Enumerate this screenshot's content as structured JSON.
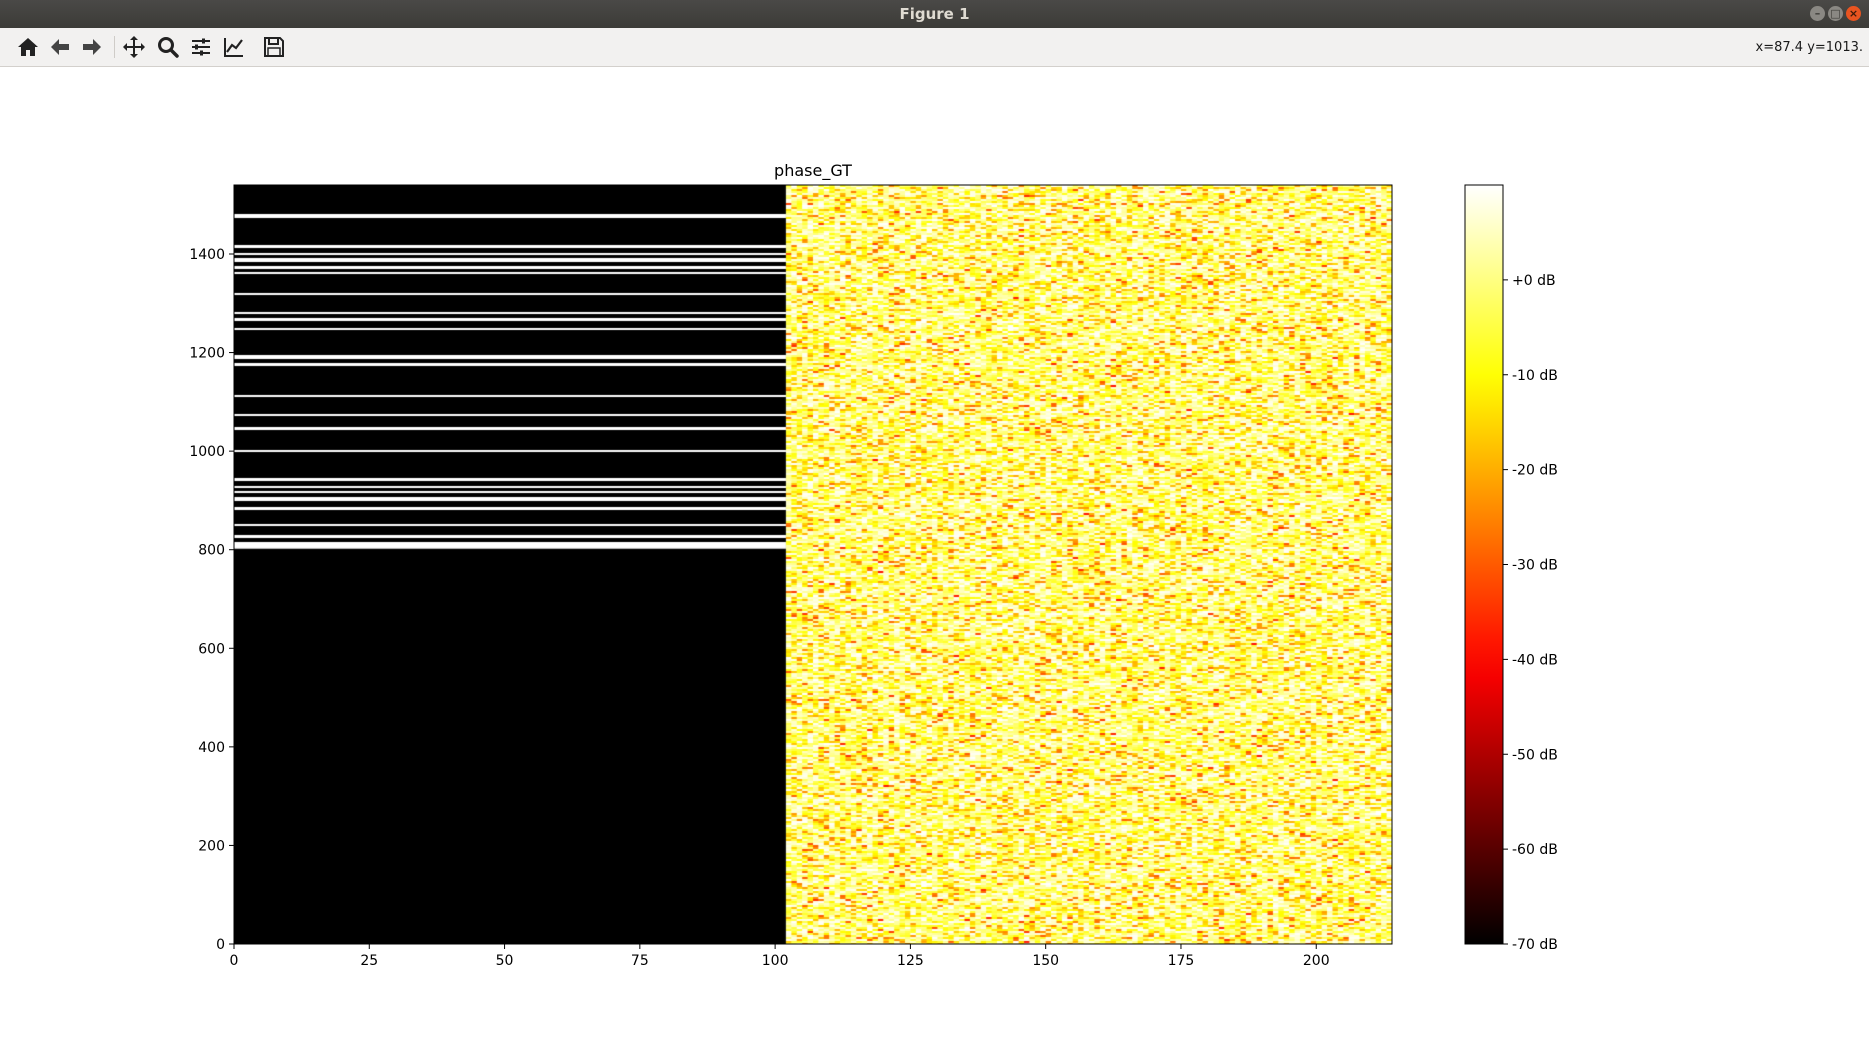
{
  "window": {
    "title": "Figure 1"
  },
  "toolbar": {
    "items": [
      {
        "icon": "home-icon"
      },
      {
        "icon": "back-arrow-icon"
      },
      {
        "icon": "forward-arrow-icon"
      },
      {
        "icon": "pan-icon"
      },
      {
        "icon": "zoom-icon"
      },
      {
        "icon": "configure-subplots-icon"
      },
      {
        "icon": "edit-axis-icon"
      },
      {
        "icon": "save-icon"
      }
    ],
    "coords": "x=87.4 y=1013."
  },
  "chart_data": {
    "type": "heatmap",
    "title": "phase_GT",
    "xlabel": "",
    "ylabel": "",
    "xlim": [
      0,
      214
    ],
    "ylim": [
      0,
      1540
    ],
    "x_ticks": [
      "0",
      "25",
      "50",
      "75",
      "100",
      "125",
      "150",
      "175",
      "200"
    ],
    "x_tick_values": [
      0,
      25,
      50,
      75,
      100,
      125,
      150,
      175,
      200
    ],
    "y_ticks": [
      "0",
      "200",
      "400",
      "600",
      "800",
      "1000",
      "1200",
      "1400"
    ],
    "y_tick_values": [
      0,
      200,
      400,
      600,
      800,
      1000,
      1200,
      1400
    ],
    "colormap": "hot",
    "colorbar": {
      "labels": [
        "+0 dB",
        "-10 dB",
        "-20 dB",
        "-30 dB",
        "-40 dB",
        "-50 dB",
        "-60 dB",
        "-70 dB"
      ],
      "values": [
        0,
        -10,
        -20,
        -30,
        -40,
        -50,
        -60,
        -70
      ],
      "range": [
        -70,
        10
      ]
    },
    "regions": {
      "left_block_x_end": 102,
      "left_lower_value_db": -70,
      "left_upper_striped_y_start": 800,
      "right_block_value_range_db": [
        -40,
        10
      ]
    }
  }
}
